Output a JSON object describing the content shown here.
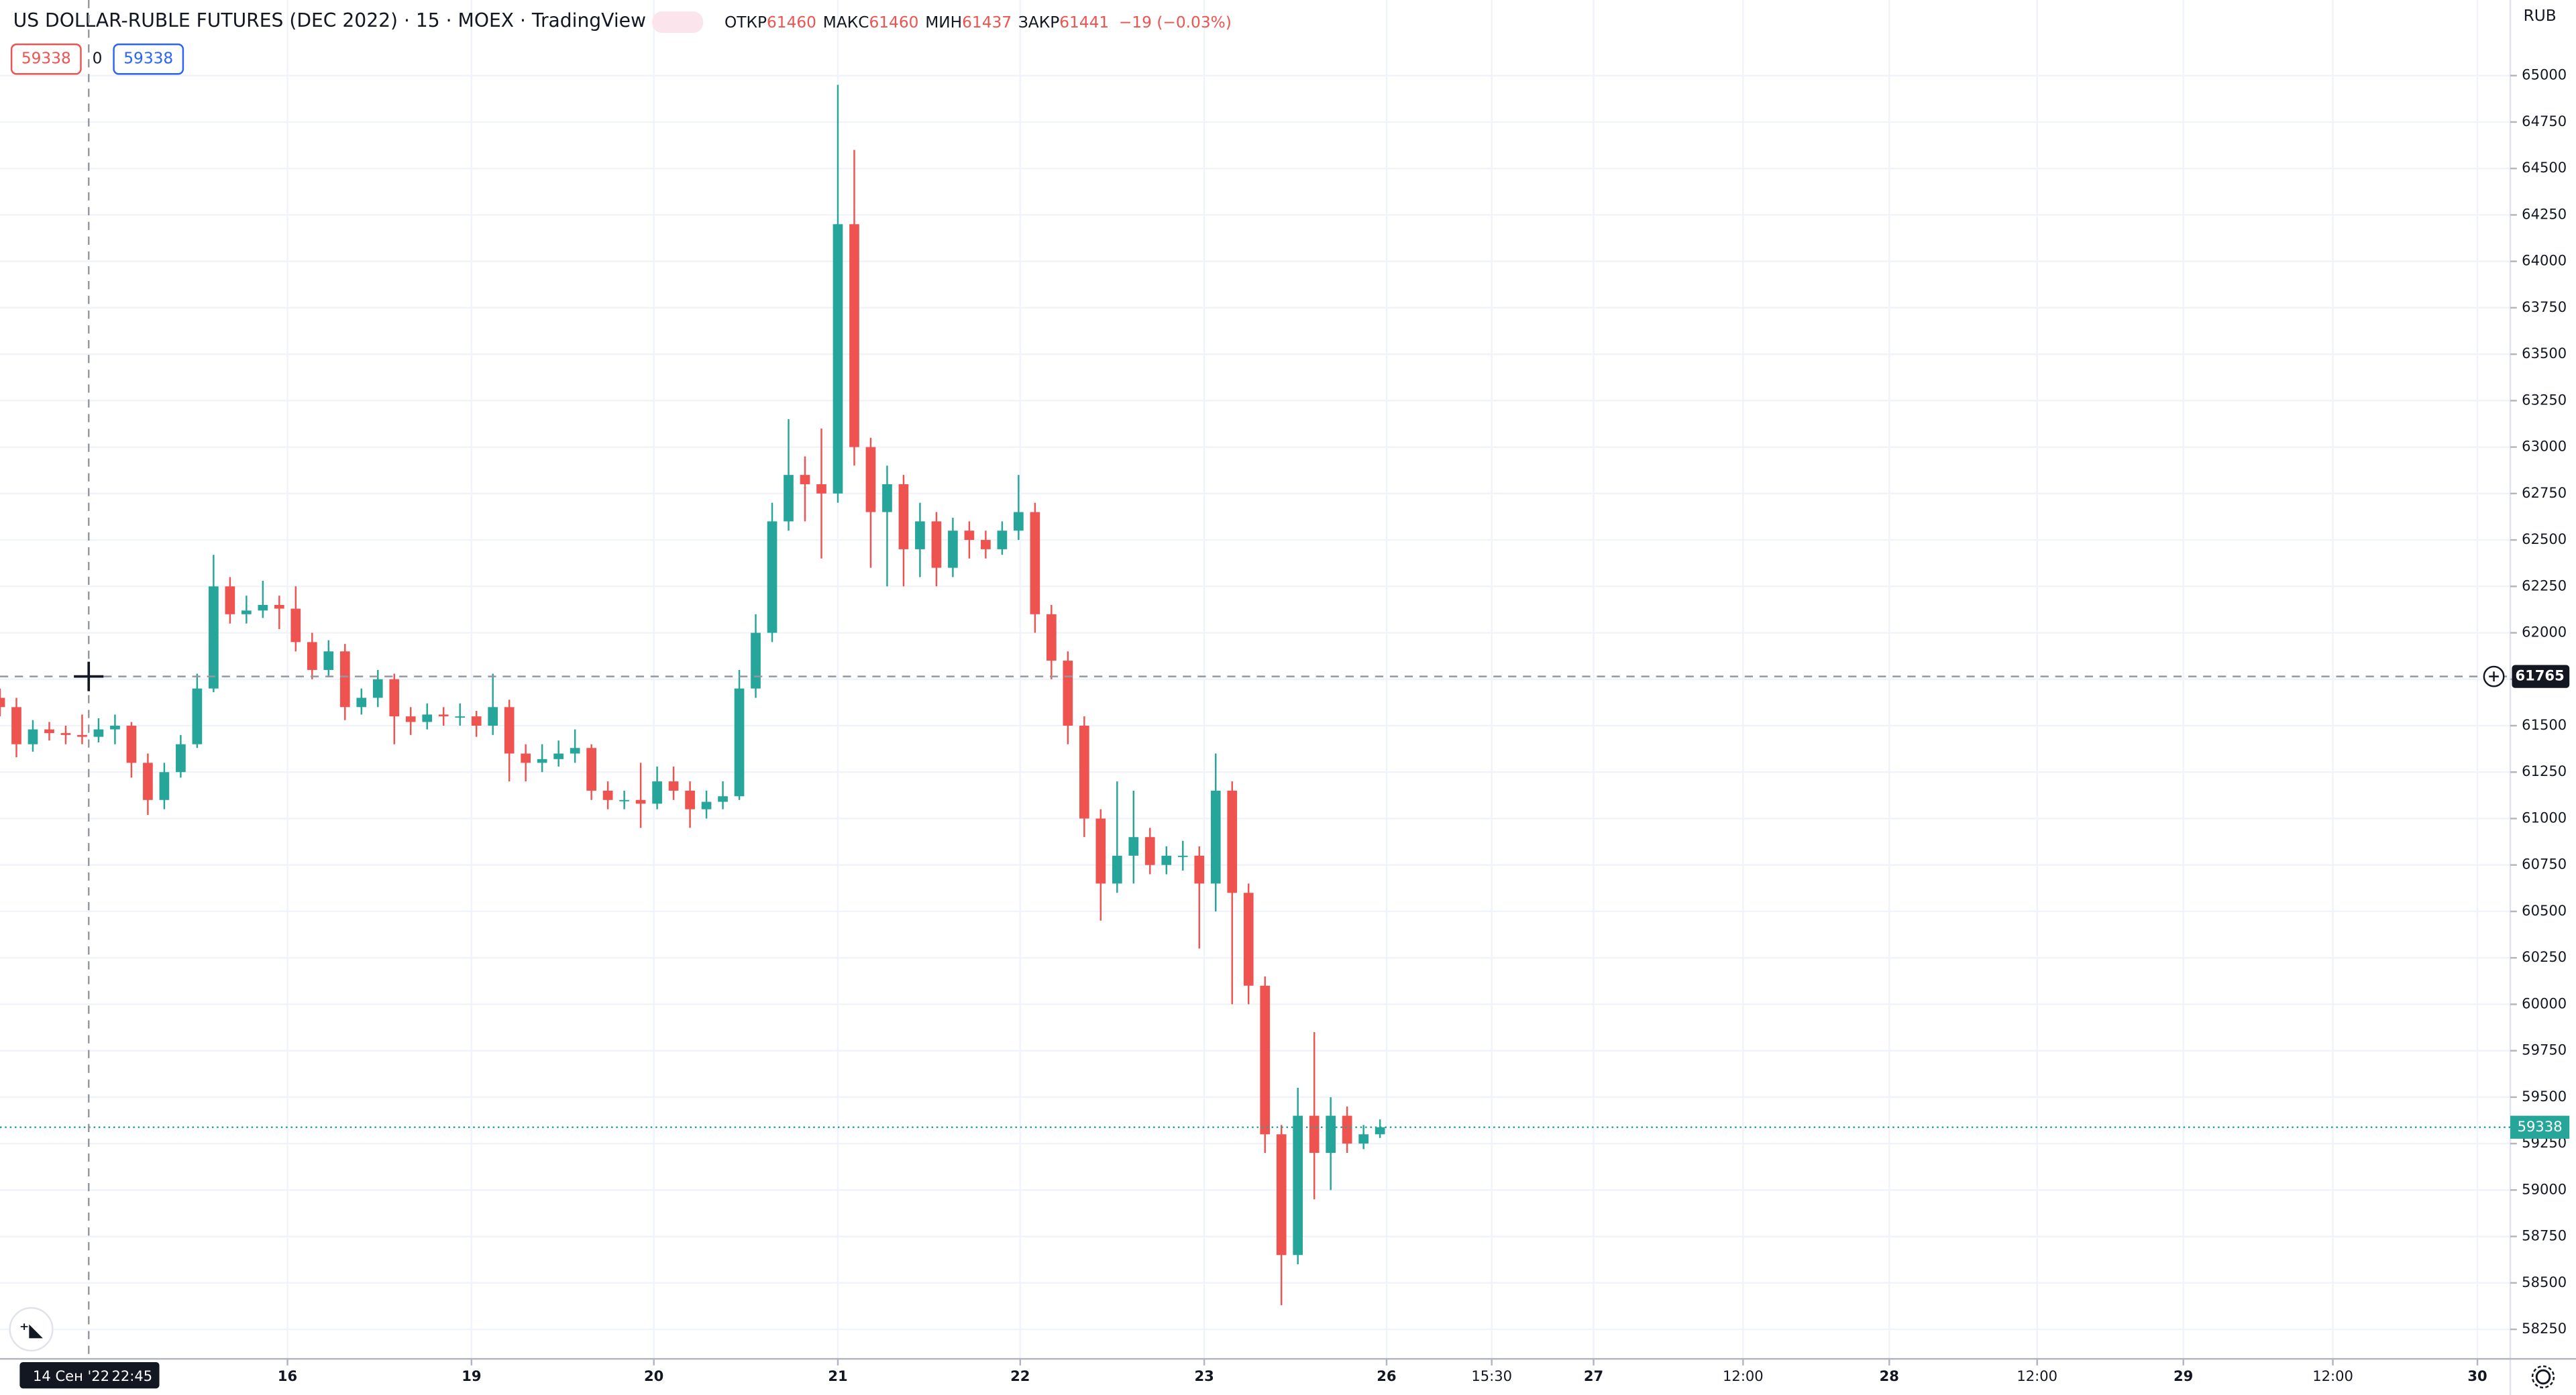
{
  "chart_data": {
    "type": "candlestick",
    "title": "US DOLLAR-RUBLE FUTURES (DEC 2022) · 15 · MOEX · TradingView",
    "legend": {
      "open_label": "ОТКР",
      "open": 61460,
      "high_label": "МАКС",
      "high": 61460,
      "low_label": "МИН",
      "low": 61437,
      "close_label": "ЗАКР",
      "close": 61441,
      "change": "−19 (−0.03%)"
    },
    "badges": [
      59338,
      0,
      59338
    ],
    "currency": "RUB",
    "up_color": "#26a69a",
    "down_color": "#ef5350",
    "x": [
      0,
      1,
      2,
      3,
      4,
      5,
      6,
      7,
      8,
      9,
      10,
      11,
      12,
      13,
      14,
      15,
      16,
      17,
      18,
      19,
      20,
      21,
      22,
      23,
      24,
      25,
      26,
      27,
      28,
      29,
      30,
      31,
      32,
      33,
      34,
      35,
      36,
      37,
      38,
      39,
      40,
      41,
      42,
      43,
      44,
      45,
      46,
      47,
      48,
      49,
      50,
      51,
      52,
      53,
      54,
      55,
      56,
      57,
      58,
      59,
      60,
      61,
      62,
      63,
      64,
      65,
      66,
      67,
      68,
      69,
      70,
      71,
      72,
      73,
      74,
      75,
      76,
      77,
      78,
      79,
      80,
      81,
      82,
      83,
      84
    ],
    "open": [
      61650,
      61600,
      61400,
      61480,
      61460,
      61450,
      61440,
      61480,
      61500,
      61300,
      61100,
      61250,
      61400,
      61700,
      62250,
      62100,
      62120,
      62150,
      62130,
      61950,
      61800,
      61900,
      61600,
      61650,
      61750,
      61550,
      61520,
      61560,
      61550,
      61550,
      61500,
      61600,
      61350,
      61300,
      61320,
      61350,
      61380,
      61150,
      61100,
      61100,
      61080,
      61200,
      61150,
      61050,
      61090,
      61120,
      61700,
      62000,
      62600,
      62850,
      62800,
      62750,
      64200,
      63000,
      62650,
      62800,
      62450,
      62600,
      62350,
      62550,
      62500,
      62450,
      62550,
      62650,
      62100,
      61850,
      61500,
      61000,
      60650,
      60800,
      60900,
      60750,
      60800,
      60800,
      60650,
      61150,
      60600,
      60100,
      59300,
      58650,
      59400,
      59200,
      59400,
      59250,
      59300
    ],
    "high": [
      61700,
      61650,
      61530,
      61520,
      61500,
      61560,
      61540,
      61560,
      61520,
      61350,
      61300,
      61450,
      61780,
      62420,
      62300,
      62200,
      62280,
      62200,
      62250,
      62000,
      61960,
      61940,
      61700,
      61800,
      61780,
      61600,
      61620,
      61600,
      61620,
      61580,
      61780,
      61640,
      61400,
      61400,
      61420,
      61480,
      61400,
      61200,
      61150,
      61300,
      61280,
      61280,
      61200,
      61150,
      61200,
      61800,
      62100,
      62700,
      63150,
      62950,
      63100,
      64950,
      64600,
      63050,
      62900,
      62850,
      62700,
      62650,
      62620,
      62600,
      62550,
      62600,
      62850,
      62700,
      62150,
      61900,
      61550,
      61050,
      61200,
      61150,
      60950,
      60850,
      60880,
      60850,
      61350,
      61200,
      60650,
      60150,
      59350,
      59550,
      59850,
      59500,
      59450,
      59350,
      59380
    ],
    "low": [
      61550,
      61330,
      61360,
      61420,
      61400,
      61400,
      61410,
      61400,
      61220,
      61020,
      61050,
      61220,
      61380,
      61680,
      62050,
      62050,
      62080,
      62020,
      61900,
      61750,
      61760,
      61530,
      61560,
      61600,
      61400,
      61450,
      61480,
      61500,
      61500,
      61440,
      61450,
      61200,
      61200,
      61250,
      61280,
      61300,
      61100,
      61050,
      61050,
      60950,
      61050,
      61100,
      60950,
      61000,
      61050,
      61100,
      61650,
      61950,
      62550,
      62600,
      62400,
      62700,
      62900,
      62350,
      62250,
      62250,
      62300,
      62250,
      62300,
      62400,
      62400,
      62420,
      62500,
      62000,
      61750,
      61400,
      60900,
      60450,
      60600,
      60650,
      60700,
      60700,
      60720,
      60300,
      60500,
      60000,
      60000,
      59200,
      58380,
      58600,
      58950,
      59000,
      59200,
      59220,
      59280
    ],
    "close": [
      61600,
      61400,
      61480,
      61460,
      61450,
      61440,
      61480,
      61500,
      61300,
      61100,
      61250,
      61400,
      61700,
      62250,
      62100,
      62120,
      62150,
      62130,
      61950,
      61800,
      61900,
      61600,
      61650,
      61750,
      61550,
      61520,
      61560,
      61550,
      61550,
      61500,
      61600,
      61350,
      61300,
      61320,
      61350,
      61380,
      61150,
      61100,
      61100,
      61080,
      61200,
      61150,
      61050,
      61090,
      61120,
      61700,
      62000,
      62600,
      62850,
      62800,
      62750,
      64200,
      63000,
      62650,
      62800,
      62450,
      62600,
      62350,
      62550,
      62500,
      62450,
      62550,
      62650,
      62100,
      61850,
      61500,
      61000,
      60650,
      60800,
      60900,
      60750,
      60800,
      60800,
      60650,
      61150,
      60600,
      60100,
      59300,
      58650,
      59400,
      59200,
      59400,
      59250,
      59300,
      59338
    ],
    "xlim": [
      0,
      152.8
    ],
    "xticks": [
      {
        "value": 17.5,
        "label": "16"
      },
      {
        "value": 28.7,
        "label": "19"
      },
      {
        "value": 39.8,
        "label": "20"
      },
      {
        "value": 51.0,
        "label": "21"
      },
      {
        "value": 62.1,
        "label": "22"
      },
      {
        "value": 73.3,
        "label": "23"
      },
      {
        "value": 84.4,
        "label": "26"
      },
      {
        "value": 90.8,
        "label": "15:30"
      },
      {
        "value": 97.0,
        "label": "27"
      },
      {
        "value": 106.1,
        "label": "12:00"
      },
      {
        "value": 115.0,
        "label": "28"
      },
      {
        "value": 124.0,
        "label": "12:00"
      },
      {
        "value": 132.9,
        "label": "29"
      },
      {
        "value": 142.0,
        "label": "12:00"
      },
      {
        "value": 150.8,
        "label": "30"
      }
    ],
    "ylim": [
      58091,
      65407
    ],
    "yticks": [
      58250,
      58500,
      58750,
      59000,
      59250,
      59500,
      59750,
      60000,
      60250,
      60500,
      60750,
      61000,
      61250,
      61500,
      61750,
      62000,
      62250,
      62500,
      62750,
      63000,
      63250,
      63500,
      63750,
      64000,
      64250,
      64500,
      64750,
      65000
    ],
    "grid": true,
    "last_price": 59338,
    "crosshair": {
      "x": 5.4,
      "y": 61765,
      "date_label": "14 Сен '22",
      "time_label": "22:45"
    }
  }
}
